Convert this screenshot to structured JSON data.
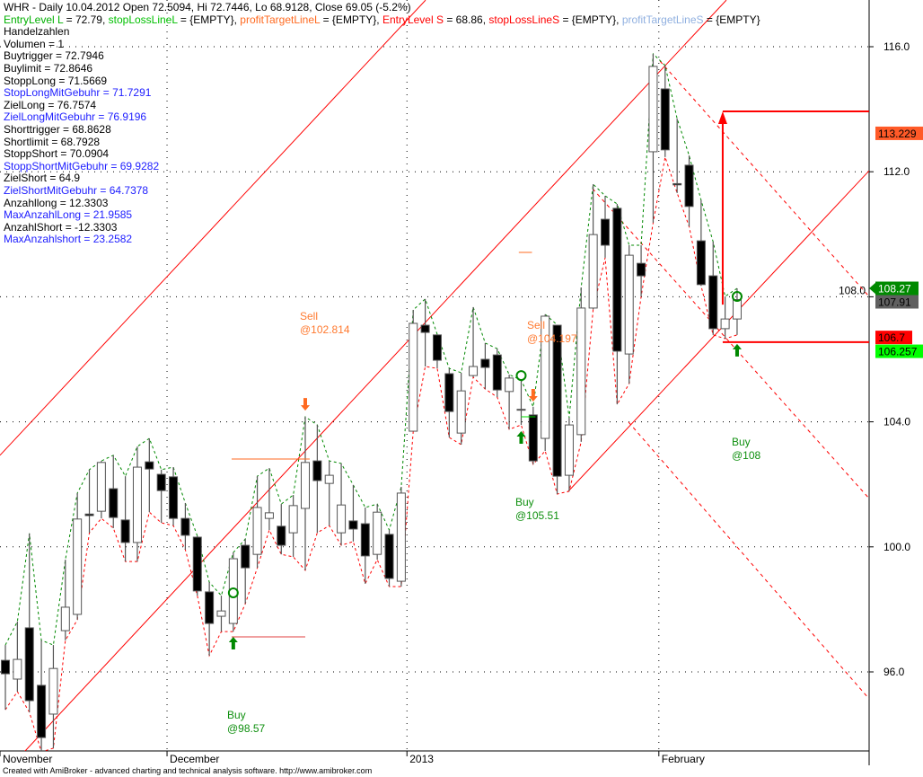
{
  "header": {
    "title": "WHR - Daily 10.04.2012 Open 72.5094, Hi 72.7446, Lo 68.9128, Close 69.05 (-5.2%)",
    "levels": [
      {
        "text": "EntryLevel L",
        "color": "#00b000"
      },
      {
        "text": " = 72.79, ",
        "color": "#000000"
      },
      {
        "text": "stopLossLineL",
        "color": "#00c000"
      },
      {
        "text": " = {EMPTY}, ",
        "color": "#000000"
      },
      {
        "text": "profitTargetLineL",
        "color": "#ff6a20"
      },
      {
        "text": " = {EMPTY}, ",
        "color": "#000000"
      },
      {
        "text": "EntryLevel S",
        "color": "#ff0000"
      },
      {
        "text": " = 68.86, ",
        "color": "#000000"
      },
      {
        "text": "stopLossLineS",
        "color": "#ff0000"
      },
      {
        "text": " = {EMPTY}, ",
        "color": "#000000"
      },
      {
        "text": "profitTargetLineS",
        "color": "#90b0e0"
      },
      {
        "text": " = {EMPTY}",
        "color": "#000000"
      }
    ],
    "lines": [
      {
        "text": "Handelzahlen",
        "color": "#000000"
      },
      {
        "text": "Volumen = 1",
        "color": "#000000"
      },
      {
        "text": "Buytrigger = 72.7946",
        "color": "#000000"
      },
      {
        "text": "Buylimit = 72.8646",
        "color": "#000000"
      },
      {
        "text": "StoppLong = 71.5669",
        "color": "#000000"
      },
      {
        "text": "StopLongMitGebuhr = 71.7291",
        "color": "#2020ff"
      },
      {
        "text": "ZielLong = 76.7574",
        "color": "#000000"
      },
      {
        "text": "ZielLongMitGebuhr = 76.9196",
        "color": "#2020ff"
      },
      {
        "text": "Shorttrigger = 68.8628",
        "color": "#000000"
      },
      {
        "text": "Shortlimit = 68.7928",
        "color": "#000000"
      },
      {
        "text": "StoppShort = 70.0904",
        "color": "#000000"
      },
      {
        "text": "StoppShortMitGebuhr = 69.9282",
        "color": "#2020ff"
      },
      {
        "text": "ZielShort = 64.9",
        "color": "#000000"
      },
      {
        "text": "ZielShortMitGebuhr = 64.7378",
        "color": "#2020ff"
      },
      {
        "text": "Anzahllong = 12.3303",
        "color": "#000000"
      },
      {
        "text": "MaxAnzahlLong = 21.9585",
        "color": "#2020ff"
      },
      {
        "text": "AnzahlShort = -12.3303",
        "color": "#000000"
      },
      {
        "text": "MaxAnzahlshort = 23.2582",
        "color": "#2020ff"
      }
    ]
  },
  "footer": "Created with AmiBroker - advanced charting and technical analysis software. http://www.amibroker.com",
  "chart_data": {
    "type": "candlestick",
    "ylim": [
      93.4,
      117.5
    ],
    "yticks": [
      {
        "value": 96,
        "label": "96.0"
      },
      {
        "value": 100,
        "label": "100.0"
      },
      {
        "value": 104,
        "label": "104.0"
      },
      {
        "value": 108,
        "label": "108.0"
      },
      {
        "value": 112,
        "label": "112.0"
      },
      {
        "value": 116,
        "label": "116.0"
      }
    ],
    "xticks": [
      {
        "bar": 0,
        "label": "November"
      },
      {
        "bar": 14,
        "label": "December"
      },
      {
        "bar": 34,
        "label": "2013"
      },
      {
        "bar": 55,
        "label": "February"
      }
    ],
    "grid": true,
    "ohlc": [
      [
        96.37,
        96.86,
        94.79,
        95.94
      ],
      [
        95.77,
        97.61,
        95.37,
        96.4
      ],
      [
        97.41,
        100.43,
        94.71,
        95.08
      ],
      [
        95.57,
        97.01,
        93.44,
        93.9
      ],
      [
        94.65,
        96.86,
        93.56,
        96.11
      ],
      [
        97.32,
        99.59,
        97.01,
        98.07
      ],
      [
        97.84,
        101.72,
        97.67,
        100.89
      ],
      [
        101.05,
        102.47,
        100.45,
        101.0
      ],
      [
        101.14,
        102.75,
        100.91,
        102.7
      ],
      [
        101.86,
        102.93,
        100.6,
        100.94
      ],
      [
        100.86,
        102.26,
        99.53,
        100.14
      ],
      [
        100.14,
        103.21,
        99.53,
        102.55
      ],
      [
        102.72,
        103.47,
        101.11,
        102.49
      ],
      [
        102.32,
        102.47,
        100.77,
        101.8
      ],
      [
        102.24,
        102.55,
        100.68,
        100.91
      ],
      [
        100.91,
        101.4,
        99.91,
        100.37
      ],
      [
        100.31,
        100.35,
        98.44,
        98.59
      ],
      [
        98.56,
        98.87,
        96.52,
        97.55
      ],
      [
        97.78,
        98.44,
        97.29,
        97.95
      ],
      [
        97.55,
        99.82,
        97.29,
        99.62
      ],
      [
        100.05,
        100.25,
        98.18,
        99.33
      ],
      [
        99.76,
        102.26,
        99.33,
        101.26
      ],
      [
        100.91,
        102.52,
        100.54,
        101.09
      ],
      [
        100.66,
        101.37,
        99.76,
        100.05
      ],
      [
        100.45,
        101.66,
        99.68,
        101.32
      ],
      [
        101.23,
        104.16,
        99.25,
        102.7
      ],
      [
        102.75,
        103.9,
        100.45,
        102.12
      ],
      [
        102.03,
        102.75,
        100.68,
        102.29
      ],
      [
        100.45,
        102.67,
        100.05,
        101.34
      ],
      [
        100.83,
        101.98,
        100.17,
        100.57
      ],
      [
        100.74,
        101.26,
        98.82,
        99.71
      ],
      [
        99.76,
        101.37,
        99.59,
        101.11
      ],
      [
        100.4,
        100.54,
        98.73,
        98.99
      ],
      [
        98.9,
        101.92,
        98.73,
        101.72
      ],
      [
        103.7,
        107.58,
        103.7,
        107.15
      ],
      [
        107.09,
        107.93,
        105.77,
        106.86
      ],
      [
        106.78,
        106.8,
        105.71,
        105.97
      ],
      [
        105.54,
        105.71,
        103.5,
        104.33
      ],
      [
        103.64,
        105.57,
        103.27,
        104.99
      ],
      [
        105.48,
        107.67,
        105.43,
        105.77
      ],
      [
        106.0,
        106.52,
        105.05,
        105.74
      ],
      [
        106.14,
        106.34,
        104.79,
        105.02
      ],
      [
        104.97,
        105.51,
        103.76,
        105.4
      ],
      [
        104.4,
        105.34,
        103.9,
        104.38
      ],
      [
        104.22,
        104.48,
        102.64,
        102.75
      ],
      [
        103.47,
        107.44,
        103.07,
        107.38
      ],
      [
        107.09,
        107.1,
        101.69,
        102.26
      ],
      [
        102.29,
        104.13,
        101.78,
        103.9
      ],
      [
        103.59,
        108.3,
        103.36,
        107.64
      ],
      [
        107.64,
        111.6,
        107.6,
        109.99
      ],
      [
        110.48,
        111.23,
        109.25,
        109.65
      ],
      [
        110.83,
        110.97,
        104.56,
        106.26
      ],
      [
        106.17,
        109.65,
        105.22,
        109.33
      ],
      [
        109.07,
        109.65,
        108.01,
        108.67
      ],
      [
        112.64,
        115.77,
        110.37,
        115.37
      ],
      [
        114.65,
        115.4,
        112.47,
        112.7
      ],
      [
        111.62,
        113.7,
        111.32,
        111.58
      ],
      [
        112.21,
        112.52,
        110.25,
        110.89
      ],
      [
        109.79,
        111.09,
        108.35,
        108.39
      ],
      [
        108.67,
        109.76,
        106.78,
        106.98
      ],
      [
        106.98,
        108.01,
        106.66,
        107.29
      ],
      [
        107.29,
        108.27,
        106.78,
        107.91
      ]
    ],
    "trendlines": [
      {
        "style": "solid",
        "color": "#ff0000",
        "from": [
          -0.45,
          102.93
        ],
        "to": [
          35.03,
          117.49
        ]
      },
      {
        "style": "solid",
        "color": "#ff0000",
        "from": [
          1.57,
          93.44
        ],
        "to": [
          60.1,
          117.49
        ]
      },
      {
        "style": "solid",
        "color": "#ff0000",
        "from": [
          46.86,
          101.75
        ],
        "to": [
          72.0,
          112.03
        ]
      },
      {
        "style": "dashed",
        "color": "#ff0000",
        "from": [
          54.57,
          115.54
        ],
        "to": [
          72.0,
          108.01
        ]
      },
      {
        "style": "dashed",
        "color": "#ff0000",
        "from": [
          48.95,
          111.46
        ],
        "to": [
          72.0,
          101.55
        ]
      },
      {
        "style": "dashed",
        "color": "#ff0000",
        "from": [
          51.95,
          103.99
        ],
        "to": [
          72.0,
          95.14
        ]
      }
    ],
    "levels": [
      {
        "color": "#ff6a20",
        "width": 1,
        "from": 18.86,
        "to": 25.37,
        "price": 102.81
      },
      {
        "color": "#ff6a20",
        "width": 1,
        "from": 42.8,
        "to": 43.9,
        "price": 109.42
      },
      {
        "color": "#e04040",
        "width": 1,
        "from": 18.86,
        "to": 25.0,
        "price": 97.12
      },
      {
        "color": "#00e000",
        "width": 1,
        "from": 43.0,
        "to": 44.2,
        "price": 104.16
      },
      {
        "color": "#ff0000",
        "width": 2,
        "from": 59.8,
        "to": 72.0,
        "price": 113.93
      },
      {
        "color": "#ff0000",
        "width": 2,
        "from": 59.8,
        "to": 72.9,
        "price": 106.55
      }
    ],
    "target_arrow": {
      "color": "#ff0000",
      "bar": 59.8,
      "from": 107.75,
      "to": 113.93
    },
    "markers": [
      {
        "kind": "circle",
        "bar": 19,
        "price": 98.53,
        "color": "#008800"
      },
      {
        "kind": "circle",
        "bar": 43,
        "price": 105.48,
        "color": "#008800"
      },
      {
        "kind": "circle",
        "bar": 61,
        "price": 108.01,
        "color": "#008800"
      },
      {
        "kind": "down-arrow",
        "bar": 25,
        "price": 104.56,
        "color": "#ff6a20"
      },
      {
        "kind": "down-arrow",
        "bar": 44,
        "price": 104.85,
        "color": "#ff6a20"
      },
      {
        "kind": "up-arrow",
        "bar": 19,
        "price": 96.92,
        "color": "#008800"
      },
      {
        "kind": "up-arrow",
        "bar": 43,
        "price": 103.5,
        "color": "#008800"
      },
      {
        "kind": "up-arrow",
        "bar": 61,
        "price": 106.29,
        "color": "#008800"
      }
    ],
    "signals": [
      {
        "action": "Sell",
        "price_text": "@102.814",
        "color": "#ff7a30"
      },
      {
        "action": "Sell",
        "price_text": "@104.197",
        "color": "#ff7a30"
      },
      {
        "action": "Buy",
        "price_text": "@98.57",
        "color": "#109010"
      },
      {
        "action": "Buy",
        "price_text": "@105.51",
        "color": "#109010"
      },
      {
        "action": "Buy",
        "price_text": "@108",
        "color": "#109010"
      }
    ],
    "price_tags": [
      {
        "value": 113.229,
        "label": "113.229",
        "bg": "#ff5a28",
        "fg": "#000000"
      },
      {
        "value": 108.27,
        "label": "108.27",
        "bg": "#008a00",
        "fg": "#ffffff"
      },
      {
        "value": 107.91,
        "label": "107.91",
        "bg": "#606060",
        "fg": "#000000"
      },
      {
        "value": 106.7,
        "label": "106.7",
        "bg": "#ff0000",
        "fg": "#000000"
      },
      {
        "value": 106.257,
        "label": "106.257",
        "bg": "#00ff00",
        "fg": "#000000"
      }
    ],
    "overlay_colors": {
      "upper_band": "#008800",
      "lower_band": "#ff0000"
    }
  }
}
